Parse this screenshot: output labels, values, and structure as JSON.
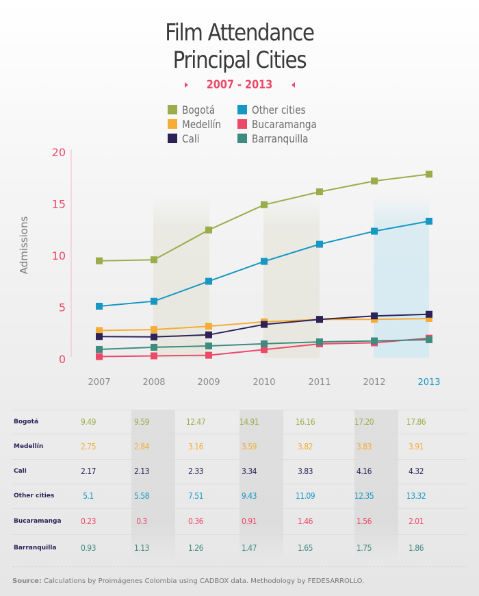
{
  "header": {
    "title_line1": "Film Attendance",
    "title_line2": "Principal Cities",
    "subtitle": "2007 - 2013"
  },
  "chart_data": {
    "type": "line",
    "title": "Film Attendance Principal Cities",
    "subtitle": "2007 - 2013",
    "xlabel": "",
    "ylabel": "Admissions",
    "ylim": [
      0,
      20
    ],
    "yticks": [
      "0",
      "5",
      "10",
      "15",
      "20"
    ],
    "x": [
      "2007",
      "2008",
      "2009",
      "2010",
      "2011",
      "2012",
      "2013"
    ],
    "highlight_x_label": "2013",
    "legend_position": "top-center",
    "series": [
      {
        "name": "Bogotá",
        "color": "#9aad4a",
        "values": [
          9.49,
          9.59,
          12.47,
          14.91,
          16.16,
          17.2,
          17.86
        ]
      },
      {
        "name": "Medellín",
        "color": "#f5ad35",
        "values": [
          2.75,
          2.84,
          3.16,
          3.59,
          3.82,
          3.83,
          3.91
        ]
      },
      {
        "name": "Cali",
        "color": "#2d2257",
        "values": [
          2.17,
          2.13,
          2.33,
          3.34,
          3.83,
          4.16,
          4.32
        ]
      },
      {
        "name": "Other cities",
        "color": "#1797c4",
        "values": [
          5.1,
          5.58,
          7.51,
          9.43,
          11.09,
          12.35,
          13.32
        ]
      },
      {
        "name": "Bucaramanga",
        "color": "#ec4868",
        "values": [
          0.23,
          0.3,
          0.36,
          0.91,
          1.46,
          1.56,
          2.01
        ]
      },
      {
        "name": "Barranquilla",
        "color": "#3f8b7f",
        "values": [
          0.93,
          1.13,
          1.26,
          1.47,
          1.65,
          1.75,
          1.86
        ]
      }
    ]
  },
  "legend": {
    "items": [
      {
        "label": "Bogotá",
        "color": "#9aad4a"
      },
      {
        "label": "Medellín",
        "color": "#f5ad35"
      },
      {
        "label": "Cali",
        "color": "#2d2257"
      },
      {
        "label": "Other cities",
        "color": "#1797c4"
      },
      {
        "label": "Bucaramanga",
        "color": "#ec4868"
      },
      {
        "label": "Barranquilla",
        "color": "#3f8b7f"
      }
    ]
  },
  "table": {
    "rows": [
      {
        "label": "Bogotá",
        "color": "#9aad4a",
        "values": [
          "9.49",
          "9.59",
          "12.47",
          "14.91",
          "16.16",
          "17.20",
          "17.86"
        ]
      },
      {
        "label": "Medellín",
        "color": "#f5ad35",
        "values": [
          "2.75",
          "2.84",
          "3.16",
          "3.59",
          "3.82",
          "3.83",
          "3.91"
        ]
      },
      {
        "label": "Cali",
        "color": "#2d2257",
        "values": [
          "2.17",
          "2.13",
          "2.33",
          "3.34",
          "3.83",
          "4.16",
          "4.32"
        ]
      },
      {
        "label": "Other cities",
        "color": "#1797c4",
        "values": [
          "5.1",
          "5.58",
          "7.51",
          "9.43",
          "11.09",
          "12.35",
          "13.32"
        ]
      },
      {
        "label": "Bucaramanga",
        "color": "#ec4868",
        "values": [
          "0.23",
          "0.3",
          "0.36",
          "0.91",
          "1.46",
          "1.56",
          "2.01"
        ]
      },
      {
        "label": "Barranquilla",
        "color": "#3f8b7f",
        "values": [
          "0.93",
          "1.13",
          "1.26",
          "1.47",
          "1.65",
          "1.75",
          "1.86"
        ]
      }
    ]
  },
  "footer": {
    "source_label": "Source:",
    "source_text": "Calculations by Proimágenes Colombia using CADBOX data. Methodology by FEDESARROLLO."
  },
  "colors": {
    "accent": "#ec4868",
    "axis_line": "#f4b8c4",
    "x_tick": "#8a8a8a",
    "x_tick_highlight": "#1797c4",
    "band_beige": "#e9e9e1",
    "band_blue": "#d8ebf2"
  }
}
